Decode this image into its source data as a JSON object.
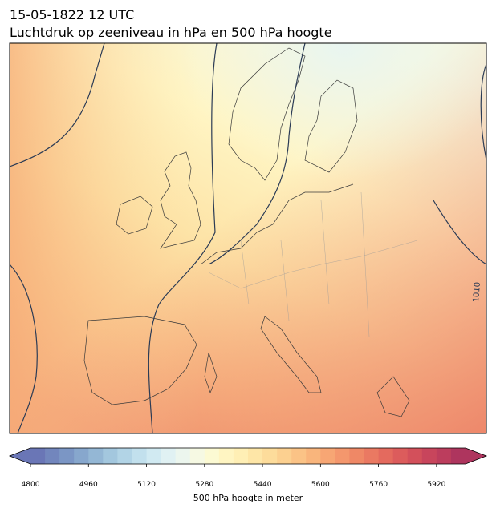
{
  "header": {
    "title": "15-05-1822 12 UTC",
    "subtitle": "Luchtdruk op zeeniveau in hPa en 500 hPa hoogte"
  },
  "map": {
    "isobar_labels": [
      "1010"
    ]
  },
  "colorbar": {
    "label": "500 hPa hoogte in meter",
    "lim": [
      4800,
      6000
    ],
    "ticks": [
      4800,
      4960,
      5120,
      5280,
      5440,
      5600,
      5760,
      5920
    ],
    "colors": [
      "#6a76b6",
      "#7286bd",
      "#7b96c5",
      "#87a7cd",
      "#94b7d5",
      "#a3c7de",
      "#b2d4e6",
      "#c2e0ed",
      "#d1eaf2",
      "#e0f1f3",
      "#ecf6ee",
      "#f6f9e3",
      "#fcfad3",
      "#fff5c2",
      "#ffefb5",
      "#fee6a7",
      "#fddc9b",
      "#fcd090",
      "#fbc386",
      "#f9b57c",
      "#f7a674",
      "#f4976d",
      "#ef8866",
      "#ea7962",
      "#e46a5e",
      "#dc5c5c",
      "#d3505b",
      "#c8455c",
      "#bc3d5d",
      "#ae355e"
    ]
  }
}
